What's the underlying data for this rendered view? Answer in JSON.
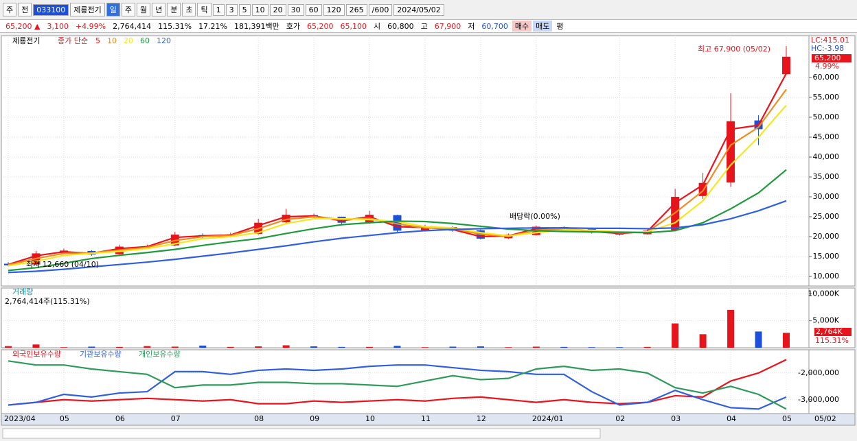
{
  "toolbar": {
    "items": [
      "주",
      "전",
      "033100",
      "제룡전기",
      "일",
      "주",
      "월",
      "년",
      "분",
      "초",
      "틱",
      "1",
      "3",
      "5",
      "10",
      "20",
      "30",
      "60",
      "120",
      "265",
      "/600",
      "2024/05/02"
    ]
  },
  "quote": {
    "items": [
      "65,200 ▲",
      "3,100",
      "+4.99%",
      "2,764,414",
      "115.31%",
      "17.21%",
      "181,391백만",
      "호가",
      "65,200",
      "65,100",
      "시",
      "60,800",
      "고",
      "67,900",
      "저",
      "60,700",
      "매수",
      "매도",
      "평"
    ]
  },
  "x_axis": {
    "cursor_label": "05/02"
  },
  "chart_data": [
    {
      "type": "candlestick",
      "title": "제룡전기",
      "legend_title": "종가 단순",
      "up_color": "#e8141c",
      "down_color": "#1e4fd8",
      "grid": true,
      "categories": [
        "2023/04",
        null,
        "05",
        null,
        "06",
        null,
        "07",
        null,
        null,
        "08",
        null,
        "09",
        null,
        "10",
        null,
        "11",
        null,
        "12",
        null,
        "2024/01",
        null,
        null,
        "02",
        null,
        "03",
        null,
        "04",
        null,
        "05"
      ],
      "open": [
        13200,
        13000,
        15900,
        16400,
        15600,
        17500,
        17800,
        20400,
        20000,
        20700,
        23600,
        25400,
        25000,
        23400,
        25400,
        21600,
        22400,
        21600,
        19600,
        20400,
        22400,
        22100,
        21000,
        20600,
        21600,
        30200,
        33600,
        49200,
        60800
      ],
      "high": [
        13600,
        16400,
        17000,
        16600,
        18000,
        18000,
        21200,
        20800,
        21000,
        24500,
        27000,
        25800,
        25000,
        26500,
        25500,
        23000,
        22600,
        21800,
        20800,
        22800,
        22600,
        22300,
        21200,
        21800,
        32000,
        36000,
        56000,
        50500,
        67900
      ],
      "low": [
        12660,
        12900,
        15600,
        15200,
        15500,
        17200,
        17600,
        19600,
        19800,
        20500,
        23400,
        24600,
        23200,
        23200,
        21200,
        21300,
        21200,
        19300,
        19400,
        20300,
        21800,
        20800,
        20300,
        20500,
        21400,
        29500,
        32500,
        43000,
        60700
      ],
      "close": [
        12800,
        15800,
        16500,
        15500,
        17500,
        17600,
        20500,
        20000,
        20600,
        23500,
        25500,
        25000,
        23500,
        25500,
        21500,
        22500,
        21500,
        19500,
        20500,
        22500,
        22000,
        21000,
        20500,
        21500,
        30000,
        33500,
        49000,
        47000,
        65200
      ],
      "series": [
        {
          "name": "5",
          "color": "#e8141c",
          "values": [
            13000,
            15200,
            16200,
            15800,
            17000,
            17500,
            19800,
            20200,
            20400,
            22800,
            25000,
            25200,
            24000,
            25000,
            22500,
            22300,
            21800,
            20000,
            20200,
            22000,
            22100,
            21300,
            20800,
            21300,
            28500,
            33000,
            47000,
            48000,
            61000
          ]
        },
        {
          "name": "10",
          "color": "#f08c1e",
          "values": [
            12900,
            14500,
            15800,
            15900,
            16600,
            17300,
            19000,
            20000,
            20300,
            22000,
            24300,
            25000,
            24300,
            24600,
            23200,
            22200,
            22000,
            20600,
            20100,
            21600,
            22000,
            21500,
            21000,
            21200,
            26000,
            31500,
            43000,
            47500,
            57000
          ]
        },
        {
          "name": "20",
          "color": "#f5e61e",
          "values": [
            12700,
            13800,
            15300,
            15800,
            16300,
            17000,
            18200,
            19500,
            20000,
            21000,
            23300,
            24500,
            24500,
            24300,
            23800,
            22500,
            22200,
            21000,
            20200,
            21000,
            21700,
            21600,
            21200,
            21200,
            23500,
            29000,
            38000,
            45000,
            53000
          ]
        },
        {
          "name": "60",
          "color": "#1e9a3c",
          "values": [
            11500,
            12200,
            13300,
            14500,
            15300,
            16000,
            16800,
            17800,
            18700,
            19500,
            20800,
            22000,
            23000,
            23500,
            23900,
            23800,
            23300,
            22600,
            21900,
            21500,
            21300,
            21200,
            21100,
            21000,
            21500,
            23500,
            27000,
            31000,
            36800
          ]
        },
        {
          "name": "120",
          "color": "#2f5fe0",
          "values": [
            11000,
            11300,
            11800,
            12400,
            13000,
            13600,
            14300,
            15100,
            15900,
            16800,
            17700,
            18700,
            19600,
            20300,
            21000,
            21500,
            21800,
            22000,
            22100,
            22200,
            22200,
            22100,
            22100,
            22000,
            22200,
            23000,
            24500,
            26500,
            29000
          ]
        }
      ],
      "ylim": [
        7600,
        70500
      ],
      "yticks": [
        {
          "value": 10000,
          "label": "10,000"
        },
        {
          "value": 15000,
          "label": "15,000"
        },
        {
          "value": 20000,
          "label": "20,000"
        },
        {
          "value": 25000,
          "label": "25,000"
        },
        {
          "value": 30000,
          "label": "30,000"
        },
        {
          "value": 35000,
          "label": "35,000"
        },
        {
          "value": 40000,
          "label": "40,000"
        },
        {
          "value": 45000,
          "label": "45,000"
        },
        {
          "value": 50000,
          "label": "50,000"
        },
        {
          "value": 55000,
          "label": "55,000"
        },
        {
          "value": 60000,
          "label": "60,000"
        }
      ],
      "annotations": [
        "최고 67,900 (05/02)",
        "최저 12,660 (04/10)",
        "배당락(0.00%)"
      ],
      "readouts": [
        "LC:415.01",
        "HC:-3.98",
        "65,200",
        "4.99%"
      ]
    },
    {
      "type": "bar",
      "title": "거래량",
      "subtitle": "2,764,414주(115.31%)",
      "up_color": "#e8141c",
      "down_color": "#1e4fd8",
      "grid": true,
      "values": [
        300,
        600,
        100,
        200,
        150,
        300,
        200,
        400,
        150,
        250,
        450,
        250,
        150,
        150,
        350,
        100,
        200,
        250,
        100,
        200,
        150,
        100,
        100,
        150,
        4500,
        2500,
        7000,
        3000,
        2764
      ],
      "ylim": [
        0,
        11050
      ],
      "yticks": [
        {
          "value": 5000,
          "label": "5,000K"
        },
        {
          "value": 10000,
          "label": "10,000K"
        }
      ],
      "readouts": [
        "2,764K",
        "115.31%"
      ]
    },
    {
      "type": "line",
      "grid": true,
      "series": [
        {
          "name": "외국인보유수량",
          "color": "#e8141c",
          "values": [
            -3200000,
            -3100000,
            -3000000,
            -3050000,
            -3000000,
            -2950000,
            -3000000,
            -3050000,
            -3000000,
            -3150000,
            -3150000,
            -3050000,
            -3100000,
            -3050000,
            -3000000,
            -3050000,
            -2950000,
            -2900000,
            -3000000,
            -3100000,
            -3000000,
            -3100000,
            -3150000,
            -3100000,
            -2850000,
            -2900000,
            -2300000,
            -2000000,
            -1500000
          ]
        },
        {
          "name": "기관보유수량",
          "color": "#2f5fe0",
          "values": [
            -3200000,
            -3100000,
            -2800000,
            -2900000,
            -2750000,
            -2700000,
            -1950000,
            -1950000,
            -2050000,
            -1900000,
            -1850000,
            -1900000,
            -1850000,
            -1750000,
            -1700000,
            -1700000,
            -1800000,
            -1900000,
            -1950000,
            -2050000,
            -2050000,
            -2700000,
            -3200000,
            -3100000,
            -2650000,
            -3000000,
            -3300000,
            -3350000,
            -2900000
          ]
        },
        {
          "name": "개인보유수량",
          "color": "#2e9a5a",
          "values": [
            -1550000,
            -1700000,
            -1700000,
            -1850000,
            -1950000,
            -2050000,
            -2550000,
            -2450000,
            -2450000,
            -2350000,
            -2350000,
            -2400000,
            -2400000,
            -2450000,
            -2500000,
            -2300000,
            -2100000,
            -2250000,
            -2200000,
            -1850000,
            -1750000,
            -1900000,
            -1850000,
            -2000000,
            -2550000,
            -2750000,
            -2500000,
            -2800000,
            -3350000
          ]
        }
      ],
      "ylim": [
        -3520000,
        -1130000
      ],
      "yticks": [
        {
          "value": -2000000,
          "label": "-2,000,000"
        },
        {
          "value": -3000000,
          "label": "-3,000,000"
        }
      ]
    }
  ]
}
